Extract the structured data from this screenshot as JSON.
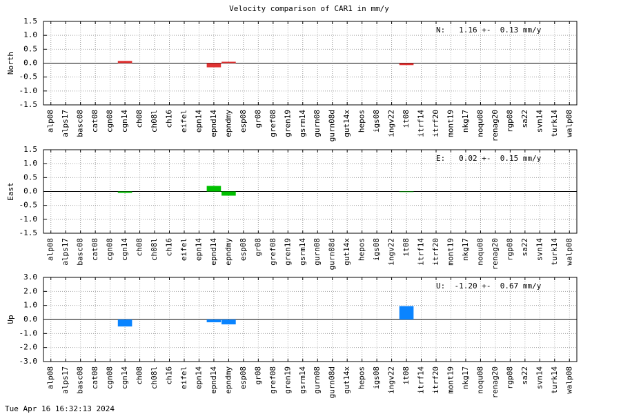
{
  "title": "Velocity comparison of CAR1 in mm/y",
  "footer": "Tue Apr 16 16:32:13 2024",
  "chart_data": [
    {
      "type": "bar",
      "ylabel": "North",
      "annotation": "N:   1.16 +-  0.13 mm/y",
      "color": "#e03232",
      "grid": true,
      "categories": [
        "alp08",
        "alps17",
        "basc08",
        "cat08",
        "cgn08",
        "cgn14",
        "ch08",
        "ch08l",
        "ch16",
        "eifel",
        "epn14",
        "epnd14",
        "epndmy",
        "esp08",
        "gr08",
        "gref08",
        "gren19",
        "gsrm14",
        "gurn08",
        "gurn08d",
        "gut14x",
        "hepos",
        "igs08",
        "ingv22",
        "it08",
        "itrf14",
        "itrf20",
        "mont19",
        "nkg17",
        "noqu08",
        "renag20",
        "rgp08",
        "sa22",
        "svn14",
        "turk14",
        "walp08"
      ],
      "values": [
        null,
        null,
        null,
        null,
        null,
        0.08,
        null,
        null,
        null,
        null,
        null,
        -0.15,
        0.05,
        null,
        null,
        null,
        null,
        null,
        null,
        null,
        null,
        null,
        null,
        null,
        -0.07,
        null,
        null,
        null,
        null,
        null,
        null,
        null,
        null,
        null,
        null,
        null
      ],
      "ylim": [
        -1.5,
        1.5
      ],
      "yticks": [
        1.5,
        {
          "value": 1,
          "label": "1.0"
        },
        0.5,
        {
          "value": 0,
          "label": "0.0"
        },
        -0.5,
        {
          "value": -1,
          "label": "-1.0"
        },
        -1.5
      ]
    },
    {
      "type": "bar",
      "ylabel": "East",
      "annotation": "E:   0.02 +-  0.15 mm/y",
      "color": "#00c000",
      "grid": true,
      "categories": [
        "alp08",
        "alps17",
        "basc08",
        "cat08",
        "cgn08",
        "cgn14",
        "ch08",
        "ch08l",
        "ch16",
        "eifel",
        "epn14",
        "epnd14",
        "epndmy",
        "esp08",
        "gr08",
        "gref08",
        "gren19",
        "gsrm14",
        "gurn08",
        "gurn08d",
        "gut14x",
        "hepos",
        "igs08",
        "ingv22",
        "it08",
        "itrf14",
        "itrf20",
        "mont19",
        "nkg17",
        "noqu08",
        "renag20",
        "rgp08",
        "sa22",
        "svn14",
        "turk14",
        "walp08"
      ],
      "values": [
        null,
        null,
        null,
        null,
        null,
        -0.05,
        null,
        null,
        null,
        null,
        null,
        0.2,
        -0.15,
        null,
        null,
        null,
        null,
        null,
        null,
        null,
        null,
        null,
        null,
        null,
        -0.02,
        null,
        null,
        null,
        null,
        null,
        null,
        null,
        null,
        null,
        null,
        null
      ],
      "ylim": [
        -1.5,
        1.5
      ],
      "yticks": [
        1.5,
        {
          "value": 1,
          "label": "1.0"
        },
        0.5,
        {
          "value": 0,
          "label": "0.0"
        },
        -0.5,
        {
          "value": -1,
          "label": "-1.0"
        },
        -1.5
      ]
    },
    {
      "type": "bar",
      "ylabel": "Up",
      "annotation": "U:  -1.20 +-  0.67 mm/y",
      "color": "#0a84ff",
      "grid": true,
      "categories": [
        "alp08",
        "alps17",
        "basc08",
        "cat08",
        "cgn08",
        "cgn14",
        "ch08",
        "ch08l",
        "ch16",
        "eifel",
        "epn14",
        "epnd14",
        "epndmy",
        "esp08",
        "gr08",
        "gref08",
        "gren19",
        "gsrm14",
        "gurn08",
        "gurn08d",
        "gut14x",
        "hepos",
        "igs08",
        "ingv22",
        "it08",
        "itrf14",
        "itrf20",
        "mont19",
        "nkg17",
        "noqu08",
        "renag20",
        "rgp08",
        "sa22",
        "svn14",
        "turk14",
        "walp08"
      ],
      "values": [
        null,
        null,
        null,
        null,
        null,
        -0.5,
        null,
        null,
        null,
        null,
        null,
        -0.2,
        -0.35,
        null,
        null,
        null,
        null,
        null,
        null,
        null,
        null,
        null,
        null,
        null,
        0.95,
        null,
        null,
        null,
        null,
        null,
        null,
        null,
        null,
        null,
        null,
        null
      ],
      "ylim": [
        -3,
        3
      ],
      "yticks": [
        {
          "value": 3,
          "label": "3.0"
        },
        {
          "value": 2,
          "label": "2.0"
        },
        {
          "value": 1,
          "label": "1.0"
        },
        {
          "value": 0,
          "label": "0.0"
        },
        {
          "value": -1,
          "label": "-1.0"
        },
        {
          "value": -2,
          "label": "-2.0"
        },
        {
          "value": -3,
          "label": "-3.0"
        }
      ]
    }
  ]
}
